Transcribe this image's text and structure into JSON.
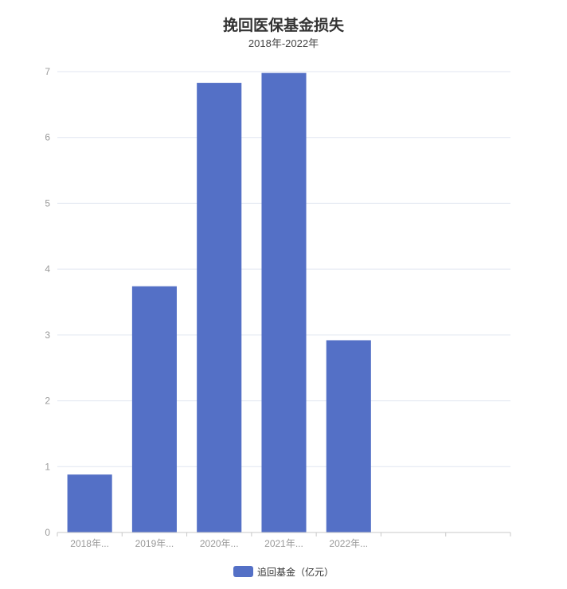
{
  "chart_data": {
    "type": "bar",
    "title": "挽回医保基金损失",
    "subtitle": "2018年-2022年",
    "xlabel": "",
    "ylabel": "",
    "categories": [
      "2018年...",
      "2019年...",
      "2020年...",
      "2021年...",
      "2022年...",
      "",
      ""
    ],
    "series": [
      {
        "name": "追回基金（亿元）",
        "values": [
          0.88,
          3.74,
          6.83,
          6.98,
          2.92,
          null,
          null
        ],
        "color": "#5470c6"
      }
    ],
    "ylim": [
      0,
      7
    ],
    "yticks": [
      0,
      1,
      2,
      3,
      4,
      5,
      6,
      7
    ],
    "grid": true,
    "legend": "bottom-center"
  }
}
